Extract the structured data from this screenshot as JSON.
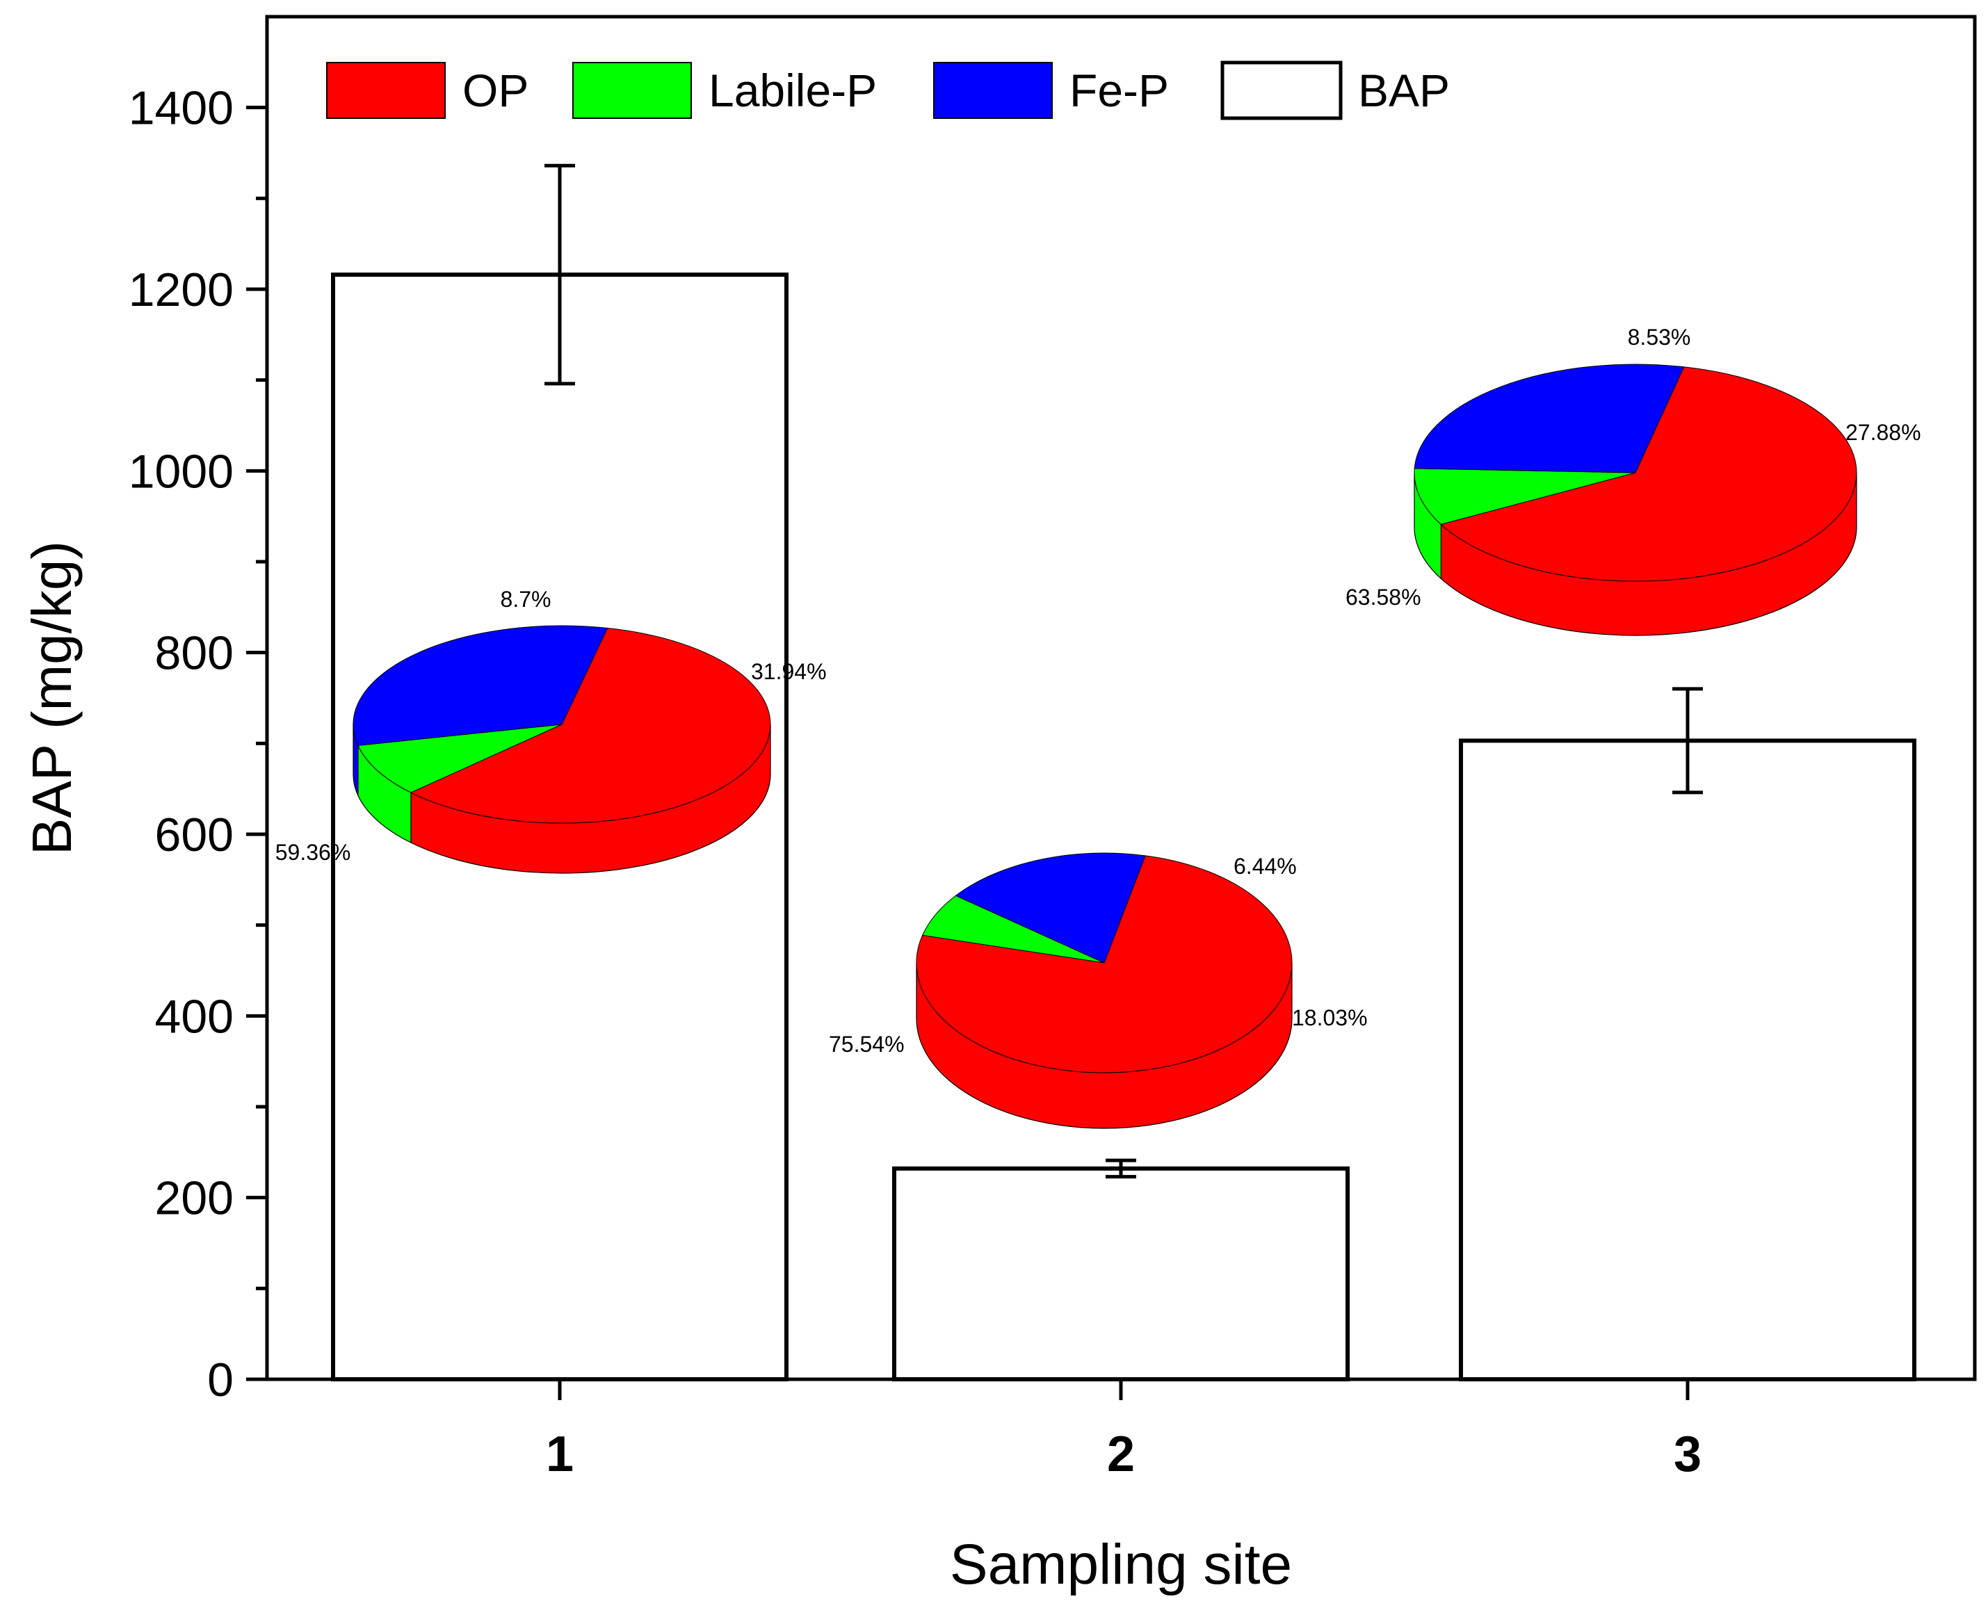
{
  "chart_data": {
    "type": "bar",
    "xlabel": "Sampling site",
    "ylabel": "BAP (mg/kg)",
    "categories": [
      "1",
      "2",
      "3"
    ],
    "values": [
      1216,
      232,
      703
    ],
    "errors": [
      120,
      9,
      57
    ],
    "ylim": [
      0,
      1500
    ],
    "yticks": [
      0,
      200,
      400,
      600,
      800,
      1000,
      1200,
      1400
    ],
    "ytick_labels": [
      "0",
      "200",
      "400",
      "600",
      "800",
      "1000",
      "1200",
      "1400"
    ],
    "legend": [
      {
        "label": "OP",
        "color": "#ff0000"
      },
      {
        "label": "Labile-P",
        "color": "#00ff00"
      },
      {
        "label": "Fe-P",
        "color": "#0000ff"
      },
      {
        "label": "BAP",
        "color": "#ffffff"
      }
    ],
    "legend_position": "top-left",
    "pies": [
      {
        "site": "1",
        "fractions": [
          59.36,
          8.7,
          31.94
        ],
        "labels": [
          "59.36%",
          "8.7%",
          "31.94%"
        ]
      },
      {
        "site": "2",
        "fractions": [
          75.54,
          6.44,
          18.03
        ],
        "labels": [
          "75.54%",
          "6.44%",
          "18.03%"
        ]
      },
      {
        "site": "3",
        "fractions": [
          63.58,
          8.53,
          27.88
        ],
        "labels": [
          "63.58%",
          "8.53%",
          "27.88%"
        ]
      }
    ]
  }
}
